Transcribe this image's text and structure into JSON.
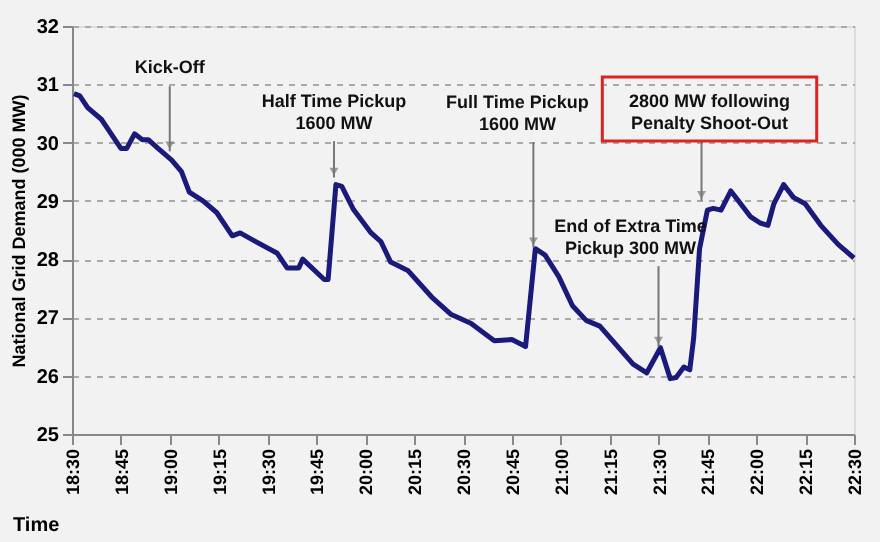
{
  "chart_data": {
    "type": "line",
    "xlabel": "Time",
    "ylabel": "National Grid Demand (000 MW)",
    "x": [
      18.51,
      18.54,
      18.58,
      18.65,
      18.69,
      18.75,
      18.78,
      18.82,
      18.86,
      18.89,
      18.94,
      19.01,
      19.06,
      19.1,
      19.17,
      19.24,
      19.32,
      19.36,
      19.44,
      19.55,
      19.6,
      19.66,
      19.68,
      19.79,
      19.81,
      19.85,
      19.88,
      19.94,
      20.03,
      20.08,
      20.13,
      20.22,
      20.34,
      20.44,
      20.54,
      20.66,
      20.75,
      20.82,
      20.87,
      20.92,
      20.99,
      21.06,
      21.13,
      21.2,
      21.37,
      21.44,
      21.51,
      21.56,
      21.59,
      21.63,
      21.66,
      21.68,
      21.71,
      21.75,
      21.78,
      21.82,
      21.87,
      21.92,
      21.97,
      22.02,
      22.06,
      22.09,
      22.14,
      22.19,
      22.25,
      22.33,
      22.42,
      22.5
    ],
    "series": [
      {
        "color": "#1a1a7a",
        "values": [
          30.84,
          30.8,
          30.6,
          30.4,
          30.2,
          29.9,
          29.9,
          30.15,
          30.05,
          30.05,
          29.9,
          29.7,
          29.5,
          29.15,
          29.0,
          28.8,
          28.4,
          28.45,
          28.3,
          28.1,
          27.85,
          27.85,
          28.0,
          27.65,
          27.65,
          29.28,
          29.25,
          28.85,
          28.45,
          28.3,
          27.95,
          27.8,
          27.35,
          27.05,
          26.9,
          26.6,
          26.62,
          26.5,
          28.18,
          28.07,
          27.7,
          27.2,
          26.95,
          26.85,
          26.2,
          26.05,
          26.48,
          25.95,
          25.97,
          26.15,
          26.1,
          26.65,
          28.18,
          28.84,
          28.87,
          28.84,
          29.17,
          28.95,
          28.73,
          28.62,
          28.58,
          28.95,
          29.28,
          29.06,
          28.95,
          28.58,
          28.25,
          28.02
        ]
      }
    ],
    "xlim": [
      18.5,
      22.5
    ],
    "xticks": [
      {
        "value": 18.5,
        "label": "18:30"
      },
      {
        "value": 18.75,
        "label": "18:45"
      },
      {
        "value": 19,
        "label": "19:00"
      },
      {
        "value": 19.25,
        "label": "19:15"
      },
      {
        "value": 19.5,
        "label": "19:30"
      },
      {
        "value": 19.75,
        "label": "19:45"
      },
      {
        "value": 20,
        "label": "20:00"
      },
      {
        "value": 20.25,
        "label": "20:15"
      },
      {
        "value": 20.5,
        "label": "20:30"
      },
      {
        "value": 20.75,
        "label": "20:45"
      },
      {
        "value": 21,
        "label": "21:00"
      },
      {
        "value": 21.25,
        "label": "21:15"
      },
      {
        "value": 21.5,
        "label": "21:30"
      },
      {
        "value": 21.75,
        "label": "21:45"
      },
      {
        "value": 22,
        "label": "22:00"
      },
      {
        "value": 22.25,
        "label": "22:15"
      },
      {
        "value": 22.5,
        "label": "22:30"
      }
    ],
    "ylim": [
      25,
      32
    ],
    "yticks": [
      25,
      26,
      27,
      28,
      29,
      30,
      31,
      32
    ],
    "grid": "y",
    "legend": false,
    "marker": "none",
    "line_style": "solid",
    "annotations": [
      {
        "text": "Kick-Off",
        "x": 19.0,
        "y": 29.85
      },
      {
        "text": "Half Time Pickup\n1600 MW",
        "x": 19.84,
        "y": 29.4
      },
      {
        "text": "Full Time Pickup\n1600 MW",
        "x": 20.86,
        "y": 28.2
      },
      {
        "text": "End of Extra Time\nPickup 300 MW",
        "x": 21.5,
        "y": 26.5
      },
      {
        "text": "2800 MW following\nPenalty Shoot-Out",
        "x": 21.72,
        "y": 29.0
      }
    ]
  }
}
